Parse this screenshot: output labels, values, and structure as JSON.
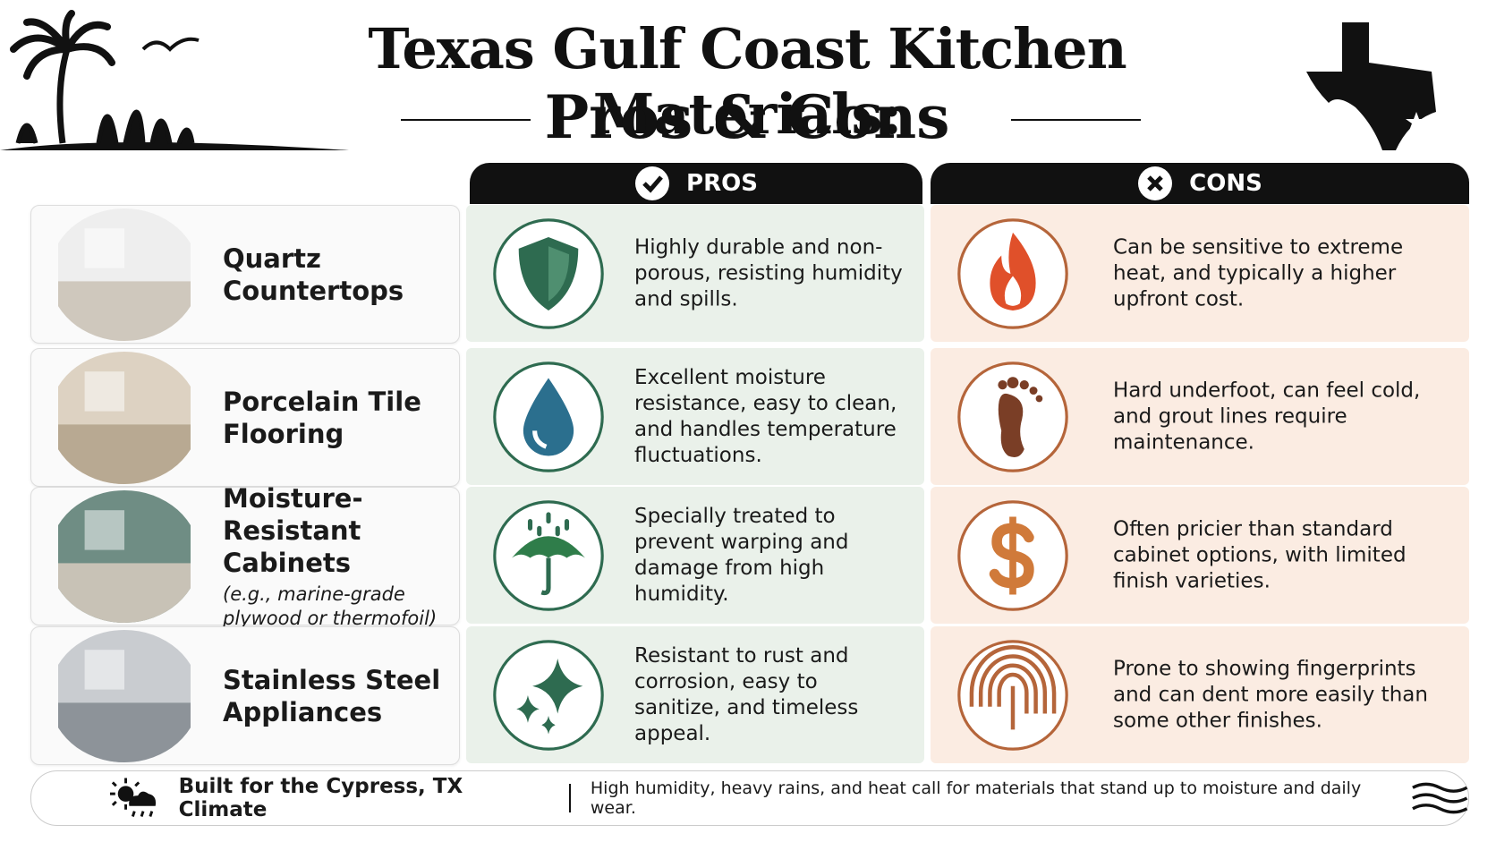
{
  "header": {
    "title_line1": "Texas Gulf Coast Kitchen Materials:",
    "title_line2": "Pros & Cons"
  },
  "columns": {
    "pros": "PROS",
    "cons": "CONS"
  },
  "rows": [
    {
      "name": "Quartz Countertops",
      "pros": "Highly durable and non-porous, resisting humidity and spills.",
      "cons": "Can be sensitive to extreme heat, and typically a higher upfront cost."
    },
    {
      "name": "Porcelain Tile Flooring",
      "pros": "Excellent moisture resistance, easy to clean, and handles temperature fluctuations.",
      "cons": "Hard underfoot, can feel cold, and grout lines require maintenance."
    },
    {
      "name": "Moisture-Resistant Cabinets",
      "note": "(e.g., marine-grade plywood or thermofoil)",
      "pros": "Specially treated to prevent warping and damage from high humidity.",
      "cons": "Often pricier than standard cabinet options, with limited finish varieties."
    },
    {
      "name": "Stainless Steel Appliances",
      "pros": "Resistant to rust and corrosion, easy to sanitize, and timeless appeal.",
      "cons": "Prone to showing fingerprints and can dent more easily than some other finishes."
    }
  ],
  "footer": {
    "title": "Built for the Cypress, TX Climate",
    "text": "High humidity, heavy rains, and heat call for materials that stand up to moisture and daily wear."
  }
}
